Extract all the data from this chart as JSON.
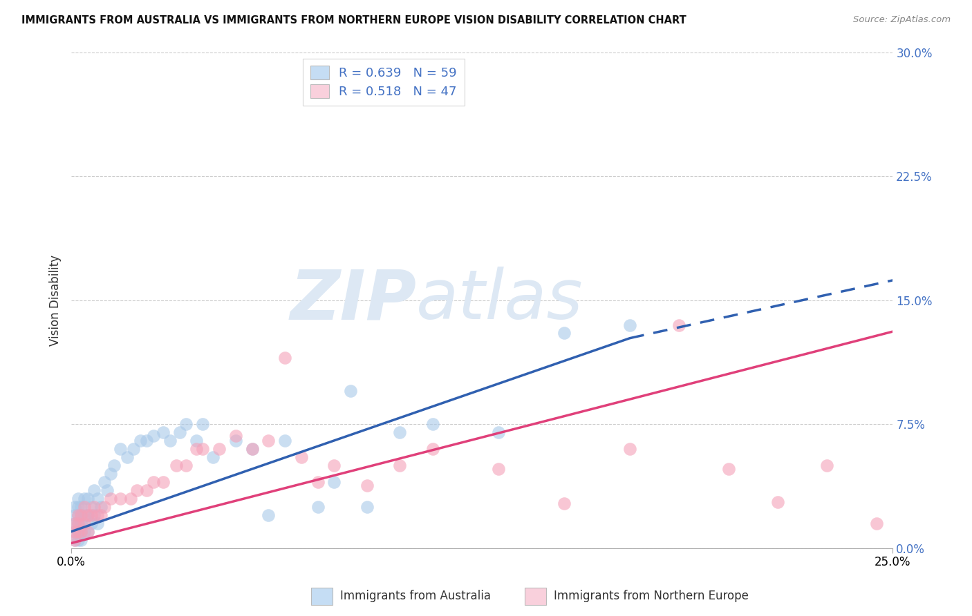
{
  "title": "IMMIGRANTS FROM AUSTRALIA VS IMMIGRANTS FROM NORTHERN EUROPE VISION DISABILITY CORRELATION CHART",
  "source": "Source: ZipAtlas.com",
  "xlabel_australia": "Immigrants from Australia",
  "xlabel_northern_europe": "Immigrants from Northern Europe",
  "ylabel": "Vision Disability",
  "xlim": [
    0.0,
    0.25
  ],
  "ylim": [
    0.0,
    0.3
  ],
  "ytick_labels": [
    "0.0%",
    "7.5%",
    "15.0%",
    "22.5%",
    "30.0%"
  ],
  "yticks": [
    0.0,
    0.075,
    0.15,
    0.225,
    0.3
  ],
  "R_australia": 0.639,
  "N_australia": 59,
  "R_northern_europe": 0.518,
  "N_northern_europe": 47,
  "color_australia": "#a8c8e8",
  "color_northern_europe": "#f4a0b8",
  "color_line_australia": "#3060b0",
  "color_line_northern_europe": "#e0407a",
  "legend_face_australia": "#c5ddf4",
  "legend_face_northern_europe": "#f9d0dc",
  "watermark_color": "#dde8f4",
  "aus_line_start_x": 0.0,
  "aus_line_start_y": 0.01,
  "aus_line_end_x": 0.17,
  "aus_line_end_y": 0.127,
  "aus_line_dash_end_x": 0.25,
  "aus_line_dash_end_y": 0.162,
  "neu_line_start_x": 0.0,
  "neu_line_start_y": 0.003,
  "neu_line_end_x": 0.25,
  "neu_line_end_y": 0.131,
  "australia_x": [
    0.001,
    0.001,
    0.001,
    0.001,
    0.001,
    0.002,
    0.002,
    0.002,
    0.002,
    0.002,
    0.002,
    0.003,
    0.003,
    0.003,
    0.003,
    0.003,
    0.004,
    0.004,
    0.004,
    0.005,
    0.005,
    0.005,
    0.006,
    0.006,
    0.007,
    0.007,
    0.008,
    0.008,
    0.009,
    0.01,
    0.011,
    0.012,
    0.013,
    0.015,
    0.017,
    0.019,
    0.021,
    0.023,
    0.025,
    0.028,
    0.03,
    0.033,
    0.035,
    0.038,
    0.04,
    0.043,
    0.05,
    0.055,
    0.06,
    0.065,
    0.075,
    0.08,
    0.085,
    0.09,
    0.1,
    0.11,
    0.13,
    0.15,
    0.17
  ],
  "australia_y": [
    0.005,
    0.01,
    0.015,
    0.02,
    0.025,
    0.005,
    0.01,
    0.015,
    0.02,
    0.025,
    0.03,
    0.005,
    0.01,
    0.015,
    0.02,
    0.025,
    0.01,
    0.02,
    0.03,
    0.01,
    0.02,
    0.03,
    0.015,
    0.025,
    0.02,
    0.035,
    0.015,
    0.03,
    0.025,
    0.04,
    0.035,
    0.045,
    0.05,
    0.06,
    0.055,
    0.06,
    0.065,
    0.065,
    0.068,
    0.07,
    0.065,
    0.07,
    0.075,
    0.065,
    0.075,
    0.055,
    0.065,
    0.06,
    0.02,
    0.065,
    0.025,
    0.04,
    0.095,
    0.025,
    0.07,
    0.075,
    0.07,
    0.13,
    0.135
  ],
  "northern_europe_x": [
    0.001,
    0.001,
    0.001,
    0.002,
    0.002,
    0.002,
    0.003,
    0.003,
    0.004,
    0.004,
    0.005,
    0.005,
    0.006,
    0.007,
    0.008,
    0.009,
    0.01,
    0.012,
    0.015,
    0.018,
    0.02,
    0.023,
    0.025,
    0.028,
    0.032,
    0.035,
    0.038,
    0.04,
    0.045,
    0.05,
    0.055,
    0.06,
    0.065,
    0.07,
    0.075,
    0.08,
    0.09,
    0.1,
    0.11,
    0.13,
    0.15,
    0.17,
    0.185,
    0.2,
    0.215,
    0.23,
    0.245
  ],
  "northern_europe_y": [
    0.005,
    0.01,
    0.015,
    0.01,
    0.015,
    0.02,
    0.01,
    0.02,
    0.015,
    0.025,
    0.01,
    0.02,
    0.02,
    0.025,
    0.02,
    0.02,
    0.025,
    0.03,
    0.03,
    0.03,
    0.035,
    0.035,
    0.04,
    0.04,
    0.05,
    0.05,
    0.06,
    0.06,
    0.06,
    0.068,
    0.06,
    0.065,
    0.115,
    0.055,
    0.04,
    0.05,
    0.038,
    0.05,
    0.06,
    0.048,
    0.027,
    0.06,
    0.135,
    0.048,
    0.028,
    0.05,
    0.015
  ]
}
